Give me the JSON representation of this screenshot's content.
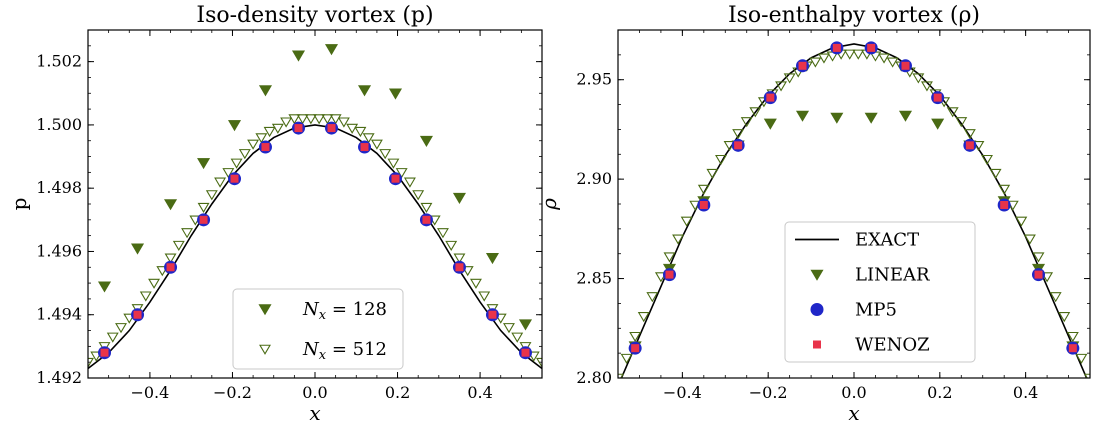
{
  "colors": {
    "exact": "#000000",
    "linear": "#4a6b14",
    "mp5": "#1f26c8",
    "wenoz": "#e8334a"
  },
  "chart_data": [
    {
      "type": "scatter",
      "title": "Iso-density vortex (p)",
      "xlabel": "x",
      "ylabel": "p",
      "xlim": [
        -0.55,
        0.55
      ],
      "ylim": [
        1.492,
        1.503
      ],
      "x_ticks": [
        -0.4,
        -0.2,
        0.0,
        0.2,
        0.4
      ],
      "x_tick_labels": [
        "−0.4",
        "−0.2",
        "0.0",
        "0.2",
        "0.4"
      ],
      "y_ticks": [
        1.492,
        1.494,
        1.496,
        1.498,
        1.5,
        1.502
      ],
      "y_tick_labels": [
        "1.492",
        "1.494",
        "1.496",
        "1.498",
        "1.500",
        "1.502"
      ],
      "legend_position": "lower-right",
      "series": [
        {
          "name": "N_x = 128",
          "legend_label": "N_x = 128",
          "marker": "triangle-down-filled",
          "color": "#4a6b14",
          "x": [
            -0.51,
            -0.43,
            -0.35,
            -0.27,
            -0.195,
            -0.12,
            -0.04,
            0.04,
            0.12,
            0.195,
            0.27,
            0.35,
            0.43,
            0.51
          ],
          "y": [
            1.4949,
            1.4961,
            1.4975,
            1.4988,
            1.5,
            1.5011,
            1.5022,
            1.5024,
            1.5011,
            1.501,
            1.4995,
            1.4977,
            1.4958,
            1.4937
          ]
        },
        {
          "name": "N_x = 512",
          "legend_label": "N_x = 512",
          "marker": "triangle-down-open",
          "color": "#4a6b14",
          "x": [
            -0.55,
            -0.53,
            -0.51,
            -0.49,
            -0.47,
            -0.45,
            -0.43,
            -0.41,
            -0.39,
            -0.37,
            -0.35,
            -0.33,
            -0.31,
            -0.29,
            -0.27,
            -0.25,
            -0.23,
            -0.21,
            -0.19,
            -0.17,
            -0.15,
            -0.13,
            -0.11,
            -0.09,
            -0.07,
            -0.05,
            -0.03,
            -0.01,
            0.01,
            0.03,
            0.05,
            0.07,
            0.09,
            0.11,
            0.13,
            0.15,
            0.17,
            0.19,
            0.21,
            0.23,
            0.25,
            0.27,
            0.29,
            0.31,
            0.33,
            0.35,
            0.37,
            0.39,
            0.41,
            0.43,
            0.45,
            0.47,
            0.49,
            0.51,
            0.53,
            0.55
          ],
          "y": [
            1.4925,
            1.4927,
            1.493,
            1.4933,
            1.4936,
            1.4939,
            1.4942,
            1.4946,
            1.495,
            1.4954,
            1.4958,
            1.4962,
            1.4966,
            1.497,
            1.4974,
            1.4978,
            1.4982,
            1.4985,
            1.4988,
            1.4991,
            1.4994,
            1.4996,
            1.4998,
            1.4999,
            1.5001,
            1.5002,
            1.5002,
            1.5002,
            1.5002,
            1.5002,
            1.5002,
            1.5001,
            1.4999,
            1.4998,
            1.4996,
            1.4994,
            1.4991,
            1.4988,
            1.4985,
            1.4982,
            1.4978,
            1.4974,
            1.497,
            1.4966,
            1.4962,
            1.4958,
            1.4954,
            1.495,
            1.4946,
            1.4942,
            1.4939,
            1.4936,
            1.4933,
            1.493,
            1.4927,
            1.4925
          ]
        },
        {
          "name": "MP5",
          "marker": "circle",
          "color": "#1f26c8",
          "in_legend": false,
          "x": [
            -0.51,
            -0.43,
            -0.35,
            -0.27,
            -0.195,
            -0.12,
            -0.04,
            0.04,
            0.12,
            0.195,
            0.27,
            0.35,
            0.43,
            0.51
          ],
          "y": [
            1.4928,
            1.494,
            1.4955,
            1.497,
            1.4983,
            1.4993,
            1.4999,
            1.4999,
            1.4993,
            1.4983,
            1.497,
            1.4955,
            1.494,
            1.4928
          ]
        },
        {
          "name": "WENOZ",
          "marker": "square",
          "color": "#e8334a",
          "in_legend": false,
          "x": [
            -0.51,
            -0.43,
            -0.35,
            -0.27,
            -0.195,
            -0.12,
            -0.04,
            0.04,
            0.12,
            0.195,
            0.27,
            0.35,
            0.43,
            0.51
          ],
          "y": [
            1.4928,
            1.494,
            1.4955,
            1.497,
            1.4983,
            1.4993,
            1.4999,
            1.4999,
            1.4993,
            1.4983,
            1.497,
            1.4955,
            1.494,
            1.4928
          ]
        },
        {
          "name": "EXACT",
          "marker": "line",
          "color": "#000000",
          "in_legend": false,
          "x": [
            -0.55,
            -0.5,
            -0.45,
            -0.4,
            -0.35,
            -0.3,
            -0.25,
            -0.2,
            -0.15,
            -0.1,
            -0.05,
            0.0,
            0.05,
            0.1,
            0.15,
            0.2,
            0.25,
            0.3,
            0.35,
            0.4,
            0.45,
            0.5,
            0.55
          ],
          "y": [
            1.4923,
            1.4928,
            1.4935,
            1.4944,
            1.4954,
            1.4965,
            1.4975,
            1.4984,
            1.4991,
            1.4996,
            1.4999,
            1.5,
            1.4999,
            1.4996,
            1.4991,
            1.4984,
            1.4975,
            1.4965,
            1.4954,
            1.4944,
            1.4935,
            1.4928,
            1.4923
          ]
        }
      ]
    },
    {
      "type": "scatter",
      "title": "Iso-enthalpy vortex (ρ)",
      "xlabel": "x",
      "ylabel": "ρ",
      "xlim": [
        -0.55,
        0.55
      ],
      "ylim": [
        2.8,
        2.975
      ],
      "x_ticks": [
        -0.4,
        -0.2,
        0.0,
        0.2,
        0.4
      ],
      "x_tick_labels": [
        "−0.4",
        "−0.2",
        "0.0",
        "0.2",
        "0.4"
      ],
      "y_ticks": [
        2.8,
        2.85,
        2.9,
        2.95
      ],
      "y_tick_labels": [
        "2.80",
        "2.85",
        "2.90",
        "2.95"
      ],
      "legend_position": "lower-center",
      "series": [
        {
          "name": "EXACT",
          "legend_label": "EXACT",
          "marker": "line",
          "color": "#000000",
          "x": [
            -0.55,
            -0.5,
            -0.45,
            -0.4,
            -0.35,
            -0.3,
            -0.25,
            -0.2,
            -0.15,
            -0.1,
            -0.05,
            0.0,
            0.05,
            0.1,
            0.15,
            0.2,
            0.25,
            0.3,
            0.35,
            0.4,
            0.45,
            0.5,
            0.55
          ],
          "y": [
            2.796,
            2.821,
            2.846,
            2.871,
            2.893,
            2.912,
            2.928,
            2.942,
            2.953,
            2.961,
            2.966,
            2.968,
            2.966,
            2.961,
            2.953,
            2.942,
            2.928,
            2.912,
            2.893,
            2.871,
            2.846,
            2.821,
            2.796
          ]
        },
        {
          "name": "LINEAR",
          "legend_label": "LINEAR",
          "marker": "triangle-down-filled",
          "color": "#4a6b14",
          "x": [
            -0.51,
            -0.43,
            -0.35,
            -0.27,
            -0.195,
            -0.12,
            -0.04,
            0.04,
            0.12,
            0.195,
            0.27,
            0.35,
            0.43,
            0.51
          ],
          "y": [
            2.816,
            2.855,
            2.889,
            2.917,
            2.928,
            2.932,
            2.931,
            2.931,
            2.932,
            2.928,
            2.917,
            2.889,
            2.855,
            2.816
          ]
        },
        {
          "name": "LINEAR-fine",
          "marker": "triangle-down-open",
          "color": "#4a6b14",
          "in_legend": false,
          "x": [
            -0.55,
            -0.53,
            -0.51,
            -0.49,
            -0.47,
            -0.45,
            -0.43,
            -0.41,
            -0.39,
            -0.37,
            -0.35,
            -0.33,
            -0.31,
            -0.29,
            -0.27,
            -0.25,
            -0.23,
            -0.21,
            -0.19,
            -0.17,
            -0.15,
            -0.13,
            -0.11,
            -0.09,
            -0.07,
            -0.05,
            -0.03,
            -0.01,
            0.01,
            0.03,
            0.05,
            0.07,
            0.09,
            0.11,
            0.13,
            0.15,
            0.17,
            0.19,
            0.21,
            0.23,
            0.25,
            0.27,
            0.29,
            0.31,
            0.33,
            0.35,
            0.37,
            0.39,
            0.41,
            0.43,
            0.45,
            0.47,
            0.49,
            0.51,
            0.53,
            0.55
          ],
          "y": [
            2.8,
            2.81,
            2.821,
            2.831,
            2.841,
            2.851,
            2.861,
            2.87,
            2.879,
            2.887,
            2.895,
            2.903,
            2.91,
            2.917,
            2.923,
            2.929,
            2.934,
            2.939,
            2.943,
            2.947,
            2.951,
            2.954,
            2.957,
            2.959,
            2.961,
            2.962,
            2.963,
            2.963,
            2.963,
            2.963,
            2.962,
            2.961,
            2.959,
            2.957,
            2.954,
            2.951,
            2.947,
            2.943,
            2.939,
            2.934,
            2.929,
            2.923,
            2.917,
            2.91,
            2.903,
            2.895,
            2.887,
            2.879,
            2.87,
            2.861,
            2.851,
            2.841,
            2.831,
            2.821,
            2.81,
            2.8
          ]
        },
        {
          "name": "MP5",
          "legend_label": "MP5",
          "marker": "circle",
          "color": "#1f26c8",
          "x": [
            -0.51,
            -0.43,
            -0.35,
            -0.27,
            -0.195,
            -0.12,
            -0.04,
            0.04,
            0.12,
            0.195,
            0.27,
            0.35,
            0.43,
            0.51
          ],
          "y": [
            2.815,
            2.852,
            2.887,
            2.917,
            2.941,
            2.957,
            2.966,
            2.966,
            2.957,
            2.941,
            2.917,
            2.887,
            2.852,
            2.815
          ]
        },
        {
          "name": "WENOZ",
          "legend_label": "WENOZ",
          "marker": "square",
          "color": "#e8334a",
          "x": [
            -0.51,
            -0.43,
            -0.35,
            -0.27,
            -0.195,
            -0.12,
            -0.04,
            0.04,
            0.12,
            0.195,
            0.27,
            0.35,
            0.43,
            0.51
          ],
          "y": [
            2.815,
            2.852,
            2.887,
            2.917,
            2.941,
            2.957,
            2.966,
            2.966,
            2.957,
            2.941,
            2.917,
            2.887,
            2.852,
            2.815
          ]
        }
      ]
    }
  ]
}
